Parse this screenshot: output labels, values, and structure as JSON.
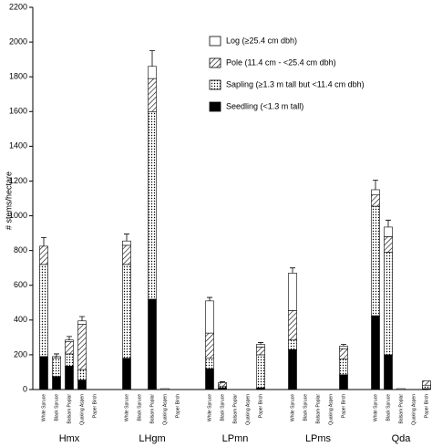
{
  "chart_data": {
    "type": "stacked-bar",
    "y_label": "# stems/hectare",
    "groups": [
      "Hmx",
      "LHgm",
      "LPmn",
      "LPms",
      "Qda"
    ],
    "categories": [
      "White Spruce",
      "Black Spruce",
      "Balsam Poplar",
      "Quaking Aspen",
      "Paper Birch",
      "White Spruce",
      "Black Spruce",
      "Balsam Poplar",
      "Quaking Aspen",
      "Paper Birch",
      "White Spruce",
      "Black Spruce",
      "Balsam Poplar",
      "Quaking Aspen",
      "Paper Birch",
      "White Spruce",
      "Black Spruce",
      "Balsam Poplar",
      "Quaking Aspen",
      "Paper Birch",
      "White Spruce",
      "Black Spruce",
      "Balsam Poplar",
      "Quaking Aspen",
      "Paper Birch"
    ],
    "series": [
      {
        "name": "Seedling (<1.3 m tall)",
        "color": "#000000",
        "pattern": "solid",
        "values": [
          190,
          75,
          135,
          55,
          0,
          180,
          0,
          520,
          0,
          0,
          120,
          10,
          0,
          0,
          10,
          230,
          0,
          0,
          0,
          85,
          425,
          200,
          0,
          0,
          5
        ]
      },
      {
        "name": "Sapling (≥1.3 m tall but <11.4 cm dbh)",
        "color": "#000000",
        "pattern": "dots",
        "values": [
          530,
          105,
          70,
          60,
          0,
          540,
          0,
          1080,
          0,
          0,
          60,
          10,
          0,
          0,
          190,
          55,
          0,
          0,
          0,
          90,
          630,
          590,
          0,
          0,
          20
        ]
      },
      {
        "name": "Pole (11.4 cm - <25.4 cm dbh)",
        "color": "#000000",
        "pattern": "hatch",
        "values": [
          105,
          10,
          70,
          260,
          0,
          110,
          0,
          190,
          0,
          0,
          145,
          20,
          0,
          0,
          45,
          170,
          0,
          0,
          0,
          60,
          65,
          90,
          0,
          0,
          25
        ]
      },
      {
        "name": "Log (≥25.4 cm dbh)",
        "color": "#000000",
        "pattern": "none",
        "values": [
          0,
          0,
          10,
          20,
          0,
          25,
          0,
          70,
          5,
          0,
          185,
          0,
          0,
          0,
          15,
          215,
          0,
          0,
          0,
          15,
          30,
          55,
          5,
          0,
          0
        ]
      }
    ],
    "errors": [
      50,
      15,
      20,
      25,
      null,
      40,
      null,
      90,
      null,
      null,
      20,
      5,
      null,
      null,
      10,
      30,
      null,
      null,
      null,
      10,
      55,
      40,
      null,
      null,
      null
    ],
    "ylim": [
      0,
      2200
    ],
    "yticks": [
      0,
      200,
      400,
      600,
      800,
      1000,
      1200,
      1400,
      1600,
      1800,
      2000,
      2200
    ]
  }
}
